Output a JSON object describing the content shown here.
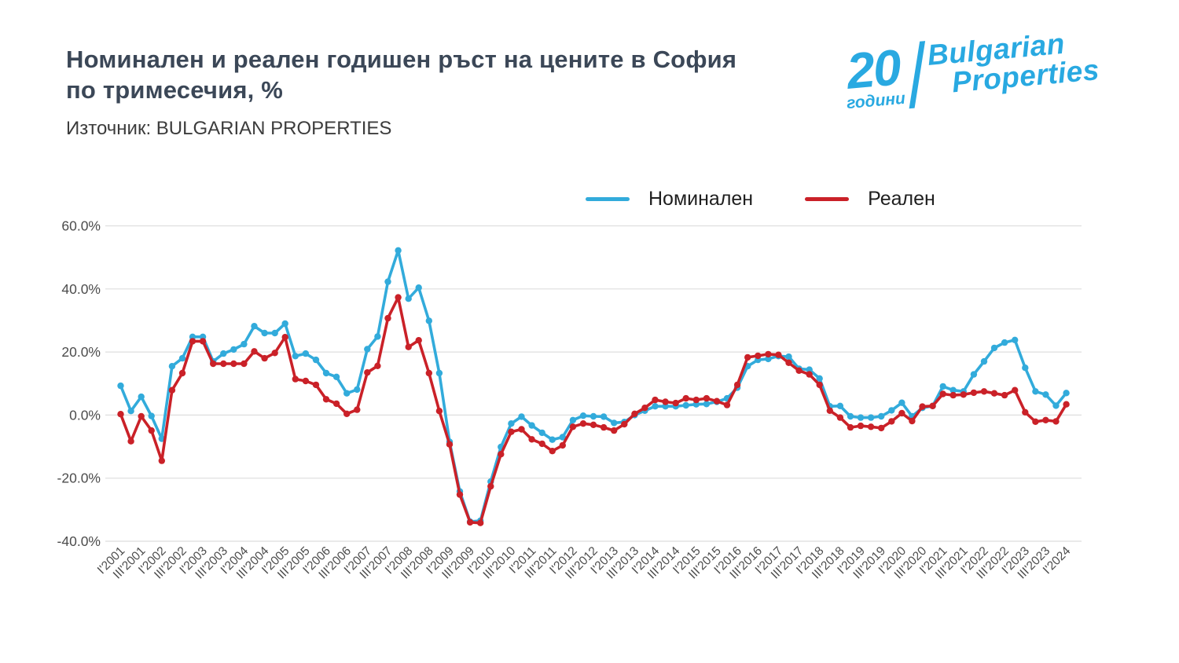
{
  "header": {
    "title_line1": "Номинален и реален годишен ръст на цените в София",
    "title_line2": "по тримесечия, %",
    "source": "Източник: BULGARIAN PROPERTIES"
  },
  "logo": {
    "number": "20",
    "years_word": "години",
    "brand_line1": "Bulgarian",
    "brand_line2": "Properties",
    "color": "#29a9e1"
  },
  "legend": [
    {
      "label": "Номинален",
      "color": "#32abdb"
    },
    {
      "label": "Реален",
      "color": "#ca2128"
    }
  ],
  "chart_data": {
    "type": "line",
    "title": "Номинален и реален годишен ръст на цените в София по тримесечия, %",
    "source_note": "Източник: BULGARIAN PROPERTIES",
    "grid": "horizontal",
    "legend_position": "top",
    "ylim": [
      -40,
      60
    ],
    "ytick_step": 20,
    "ytick_labels": [
      "60.0%",
      "40.0%",
      "20.0%",
      "0.0%",
      "-20.0%",
      "-40.0%"
    ],
    "x_unit": "quarter",
    "x_range": "I'2001 — I'2024",
    "n_points": 93,
    "x_tick_every": 2,
    "x_tick_labels": [
      "I'2001",
      "III'2001",
      "I'2002",
      "III'2002",
      "I'2003",
      "III'2003",
      "I'2004",
      "III'2004",
      "I'2005",
      "III'2005",
      "I'2006",
      "III'2006",
      "I'2007",
      "III'2007",
      "I'2008",
      "III'2008",
      "I'2009",
      "III'2009",
      "I'2010",
      "III'2010",
      "I'2011",
      "III'2011",
      "I'2012",
      "III'2012",
      "I'2013",
      "III'2013",
      "I'2014",
      "III'2014",
      "I'2015",
      "III'2015",
      "I'2016",
      "III'2016",
      "I'2017",
      "III'2017",
      "I'2018",
      "III'2018",
      "I'2019",
      "III'2019",
      "I'2020",
      "III'2020",
      "I'2021",
      "III'2021",
      "I'2022",
      "III'2022",
      "I'2023",
      "III'2023",
      "I'2024"
    ],
    "series": [
      {
        "name": "Номинален",
        "color": "#32abdb",
        "values": [
          9.3,
          1.3,
          5.8,
          -0.3,
          -7.5,
          15.5,
          18,
          24.8,
          24.8,
          17,
          19.5,
          20.8,
          22.5,
          28.2,
          26,
          26,
          29,
          18.7,
          19.5,
          17.5,
          13.3,
          12.1,
          6.9,
          8.1,
          20.9,
          24.9,
          42.3,
          52.2,
          36.9,
          40.4,
          29.9,
          13.3,
          -8.5,
          -24.2,
          -33.8,
          -33.5,
          -21.1,
          -10.1,
          -2.7,
          -0.5,
          -3.3,
          -5.6,
          -7.8,
          -7,
          -1.6,
          -0.2,
          -0.4,
          -0.5,
          -2.5,
          -2.2,
          0,
          1.4,
          2.8,
          2.8,
          2.8,
          3.1,
          3.4,
          3.5,
          4.2,
          5.3,
          8.7,
          15.5,
          17.5,
          17.8,
          18.7,
          18.5,
          14.7,
          14.4,
          11.6,
          2.8,
          2.9,
          -0.4,
          -0.8,
          -0.8,
          -0.4,
          1.5,
          3.9,
          -0.4,
          2.3,
          2.9,
          9.1,
          7.9,
          7.5,
          12.9,
          17,
          21.3,
          23,
          23.8,
          15,
          7.5,
          6.5,
          3,
          7
        ]
      },
      {
        "name": "Реален",
        "color": "#ca2128",
        "values": [
          0.3,
          -8.3,
          -0.4,
          -4.9,
          -14.5,
          7.9,
          13.3,
          23.4,
          23.4,
          16.3,
          16.3,
          16.3,
          16.3,
          20.2,
          18,
          19.7,
          24.7,
          11.4,
          10.8,
          9.6,
          5,
          3.6,
          0.4,
          1.7,
          13.5,
          15.6,
          30.7,
          37.3,
          21.6,
          23.7,
          13.3,
          1.3,
          -9.3,
          -25.2,
          -34,
          -34.2,
          -22.6,
          -12.4,
          -5.3,
          -4.5,
          -7.7,
          -9.1,
          -11.4,
          -9.6,
          -3.7,
          -2.7,
          -3.1,
          -3.9,
          -4.9,
          -2.9,
          0.4,
          2.3,
          4.8,
          4.2,
          3.8,
          5.3,
          4.8,
          5.3,
          4.4,
          3.2,
          9.6,
          18.3,
          18.8,
          19.3,
          19.1,
          16.6,
          14.1,
          12.9,
          9.6,
          1.4,
          -0.8,
          -3.9,
          -3.4,
          -3.7,
          -4.1,
          -2,
          0.6,
          -1.9,
          2.7,
          2.9,
          6.7,
          6.3,
          6.5,
          7.1,
          7.5,
          6.9,
          6.3,
          7.9,
          0.9,
          -2.1,
          -1.6,
          -2,
          3.4
        ]
      }
    ]
  }
}
